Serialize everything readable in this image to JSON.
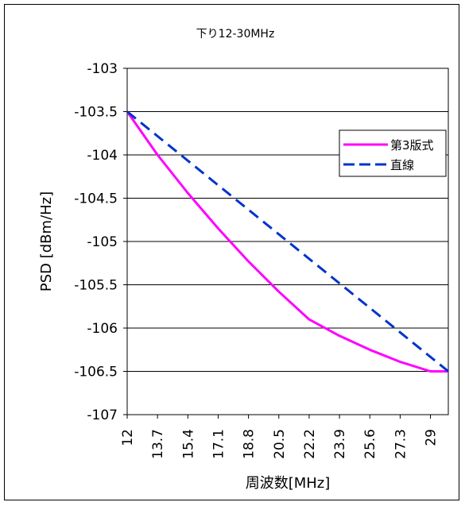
{
  "chart_data": {
    "type": "line",
    "title": "下り12-30MHz",
    "xlabel": "周波数[MHz]",
    "ylabel": "PSD [dBm/Hz]",
    "xlim": [
      12,
      30
    ],
    "ylim": [
      -107,
      -103
    ],
    "x_tick_labels": [
      "12",
      "13.7",
      "15.4",
      "17.1",
      "18.8",
      "20.5",
      "22.2",
      "23.9",
      "25.6",
      "27.3",
      "29"
    ],
    "y_tick_labels": [
      "-103",
      "-103.5",
      "-104",
      "-104.5",
      "-105",
      "-105.5",
      "-106",
      "-106.5",
      "-107"
    ],
    "y_ticks": [
      -103,
      -103.5,
      -104,
      -104.5,
      -105,
      -105.5,
      -106,
      -106.5,
      -107
    ],
    "grid": "horizontal",
    "legend_position": "right",
    "series": [
      {
        "name": "第3版式",
        "color": "#ff00ff",
        "style": "solid",
        "x": [
          12,
          13.7,
          15.4,
          17.1,
          18.8,
          20.5,
          22.2,
          23.9,
          25.6,
          27.3,
          29,
          30
        ],
        "y": [
          -103.5,
          -104.0,
          -104.44,
          -104.85,
          -105.23,
          -105.58,
          -105.9,
          -106.09,
          -106.25,
          -106.39,
          -106.5,
          -106.5
        ]
      },
      {
        "name": "直線",
        "color": "#0033cc",
        "style": "dashed",
        "x": [
          12,
          30
        ],
        "y": [
          -103.5,
          -106.5
        ]
      }
    ]
  }
}
